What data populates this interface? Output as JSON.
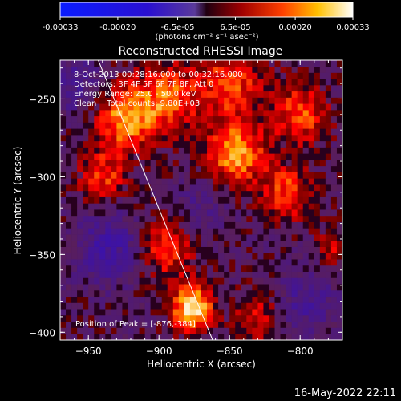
{
  "colorbar": {
    "ticks": [
      "-0.00033",
      "-0.00020",
      "-6.5e-05",
      "6.5e-05",
      "0.00020",
      "0.00033"
    ],
    "values": [
      -0.00033,
      -0.0002,
      -6.5e-05,
      6.5e-05,
      0.0002,
      0.00033
    ],
    "range": [
      -0.00033,
      0.00033
    ],
    "unit_label": "(photons cm⁻² s⁻¹ asec⁻²)"
  },
  "chart_data": {
    "type": "heatmap",
    "title": "Reconstructed RHESSI Image",
    "xlabel": "Heliocentric X (arcsec)",
    "ylabel": "Heliocentric Y (arcsec)",
    "xlim": [
      -970,
      -770
    ],
    "ylim": [
      -405,
      -225
    ],
    "xticks": [
      -950,
      -900,
      -850,
      -800
    ],
    "yticks": [
      -250,
      -300,
      -350,
      -400
    ],
    "xtick_labels": [
      "−950",
      "−900",
      "−850",
      "−800"
    ],
    "ytick_labels": [
      "−250",
      "−300",
      "−350",
      "−400"
    ],
    "annotation_lines": [
      "8-Oct-2013 00:28:16.000 to 00:32:16.000",
      "Detectors: 3F 4F 5F 6F 7F 8F, Att 0",
      "Energy Range: 25.0 - 50.0 keV",
      "Clean    Total counts: 9.80E+03"
    ],
    "peak_label": "Position of Peak = [-876,-384]",
    "peak": [
      -876,
      -384
    ],
    "limb_line": [
      [
        -943,
        -225
      ],
      [
        -862,
        -405
      ]
    ],
    "colormap": "hot-blue",
    "sources": [
      {
        "x": -876,
        "y": -384,
        "amp": 1.0,
        "sigma": 10
      },
      {
        "x": -845,
        "y": -285,
        "amp": 0.75,
        "sigma": 14
      },
      {
        "x": -925,
        "y": -263,
        "amp": 0.7,
        "sigma": 14
      },
      {
        "x": -895,
        "y": -250,
        "amp": 0.6,
        "sigma": 16
      },
      {
        "x": -800,
        "y": -260,
        "amp": 0.55,
        "sigma": 14
      },
      {
        "x": -810,
        "y": -310,
        "amp": 0.55,
        "sigma": 12
      },
      {
        "x": -940,
        "y": -300,
        "amp": 0.5,
        "sigma": 12
      },
      {
        "x": -895,
        "y": -345,
        "amp": 0.5,
        "sigma": 14
      },
      {
        "x": -850,
        "y": -240,
        "amp": 0.55,
        "sigma": 16
      },
      {
        "x": -830,
        "y": -390,
        "amp": 0.35,
        "sigma": 12
      },
      {
        "x": -935,
        "y": -345,
        "amp": -0.45,
        "sigma": 16
      },
      {
        "x": -795,
        "y": -380,
        "amp": -0.35,
        "sigma": 14
      },
      {
        "x": -870,
        "y": -320,
        "amp": -0.25,
        "sigma": 12
      },
      {
        "x": -960,
        "y": -240,
        "amp": -0.3,
        "sigma": 14
      },
      {
        "x": -775,
        "y": -345,
        "amp": 0.3,
        "sigma": 10
      }
    ]
  },
  "footer": {
    "timestamp": "16-May-2022 22:11"
  }
}
